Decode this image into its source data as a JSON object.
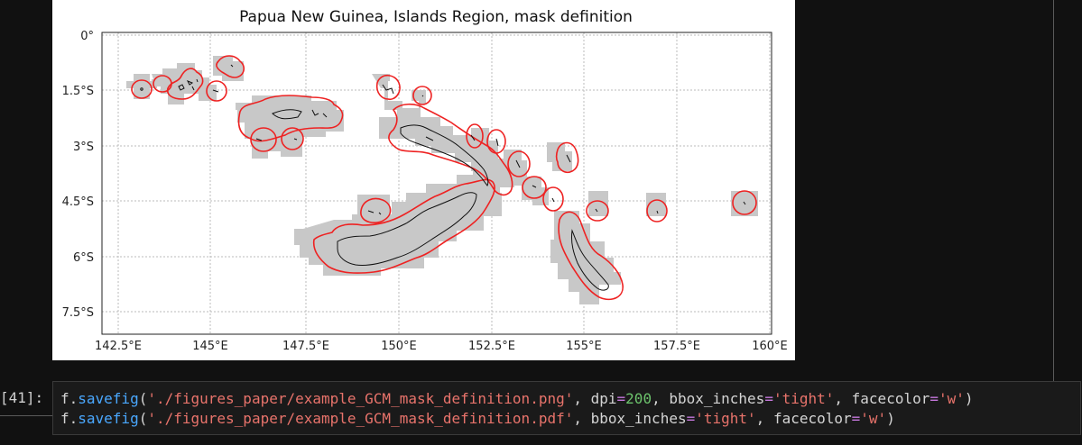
{
  "figure": {
    "title": "Papua New Guinea, Islands Region, mask definition",
    "y_ticks": [
      "0°",
      "1.5°S",
      "3°S",
      "4.5°S",
      "6°S",
      "7.5°S"
    ],
    "x_ticks": [
      "142.5°E",
      "145°E",
      "147.5°E",
      "150°E",
      "152.5°E",
      "155°E",
      "157.5°E",
      "160°E"
    ]
  },
  "cell": {
    "prompt": "[41]:",
    "lines": [
      {
        "obj": "f.",
        "fn": "savefig",
        "p1": "(",
        "path": "'./figures_paper/example_GCM_mask_definition.png'",
        "sep1": ", ",
        "k1": "dpi",
        "eq1": "=",
        "v1": "200",
        "sep2": ", ",
        "k2": "bbox_inches",
        "eq2": "=",
        "v2": "'tight'",
        "sep3": ", ",
        "k3": "facecolor",
        "eq3": "=",
        "v3": "'w'",
        "p2": ")"
      },
      {
        "obj": "f.",
        "fn": "savefig",
        "p1": "(",
        "path": "'./figures_paper/example_GCM_mask_definition.pdf'",
        "sep1": ", ",
        "k2": "bbox_inches",
        "eq2": "=",
        "v2": "'tight'",
        "sep3": ", ",
        "k3": "facecolor",
        "eq3": "=",
        "v3": "'w'",
        "p2": ")"
      }
    ]
  },
  "colors": {
    "mask_fill": "#c8c8c8",
    "mask_outline": "#ee2222",
    "coast": "#111111",
    "grid": "#bbbbbb"
  }
}
